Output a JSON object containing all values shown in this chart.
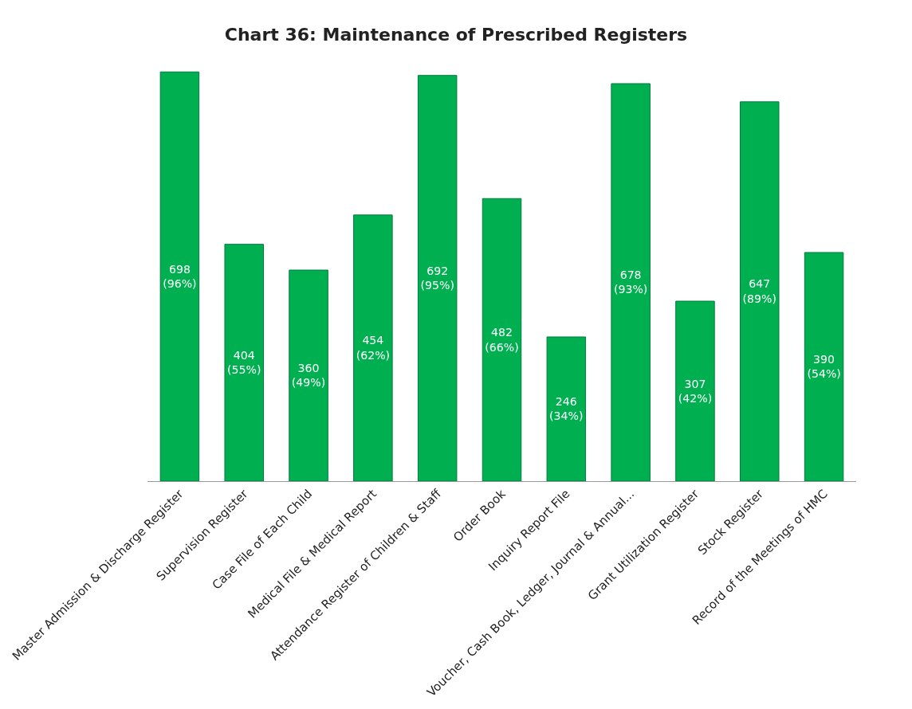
{
  "chart_data": {
    "type": "bar",
    "title": "Chart 36: Maintenance of Prescribed Registers",
    "categories": [
      "Master Admission & Discharge Register",
      "Supervision Register",
      "Case File of Each Child",
      "Medical File & Medical Report",
      "Attendance Register of Children & Staff",
      "Order Book",
      "Inquiry Report File",
      "Voucher, Cash Book, Ledger, Journal & Annual...",
      "Grant Utilization Register",
      "Stock Register",
      "Record of the Meetings of HMC"
    ],
    "values": [
      698,
      404,
      360,
      454,
      692,
      482,
      246,
      678,
      307,
      647,
      390
    ],
    "value_labels": [
      "698\n(96%)",
      "404\n(55%)",
      "360\n(49%)",
      "454\n(62%)",
      "692\n(95%)",
      "482\n(66%)",
      "246\n(34%)",
      "678\n(93%)",
      "307\n(42%)",
      "647\n(89%)",
      "390\n(54%)"
    ],
    "color": "#00b050"
  }
}
